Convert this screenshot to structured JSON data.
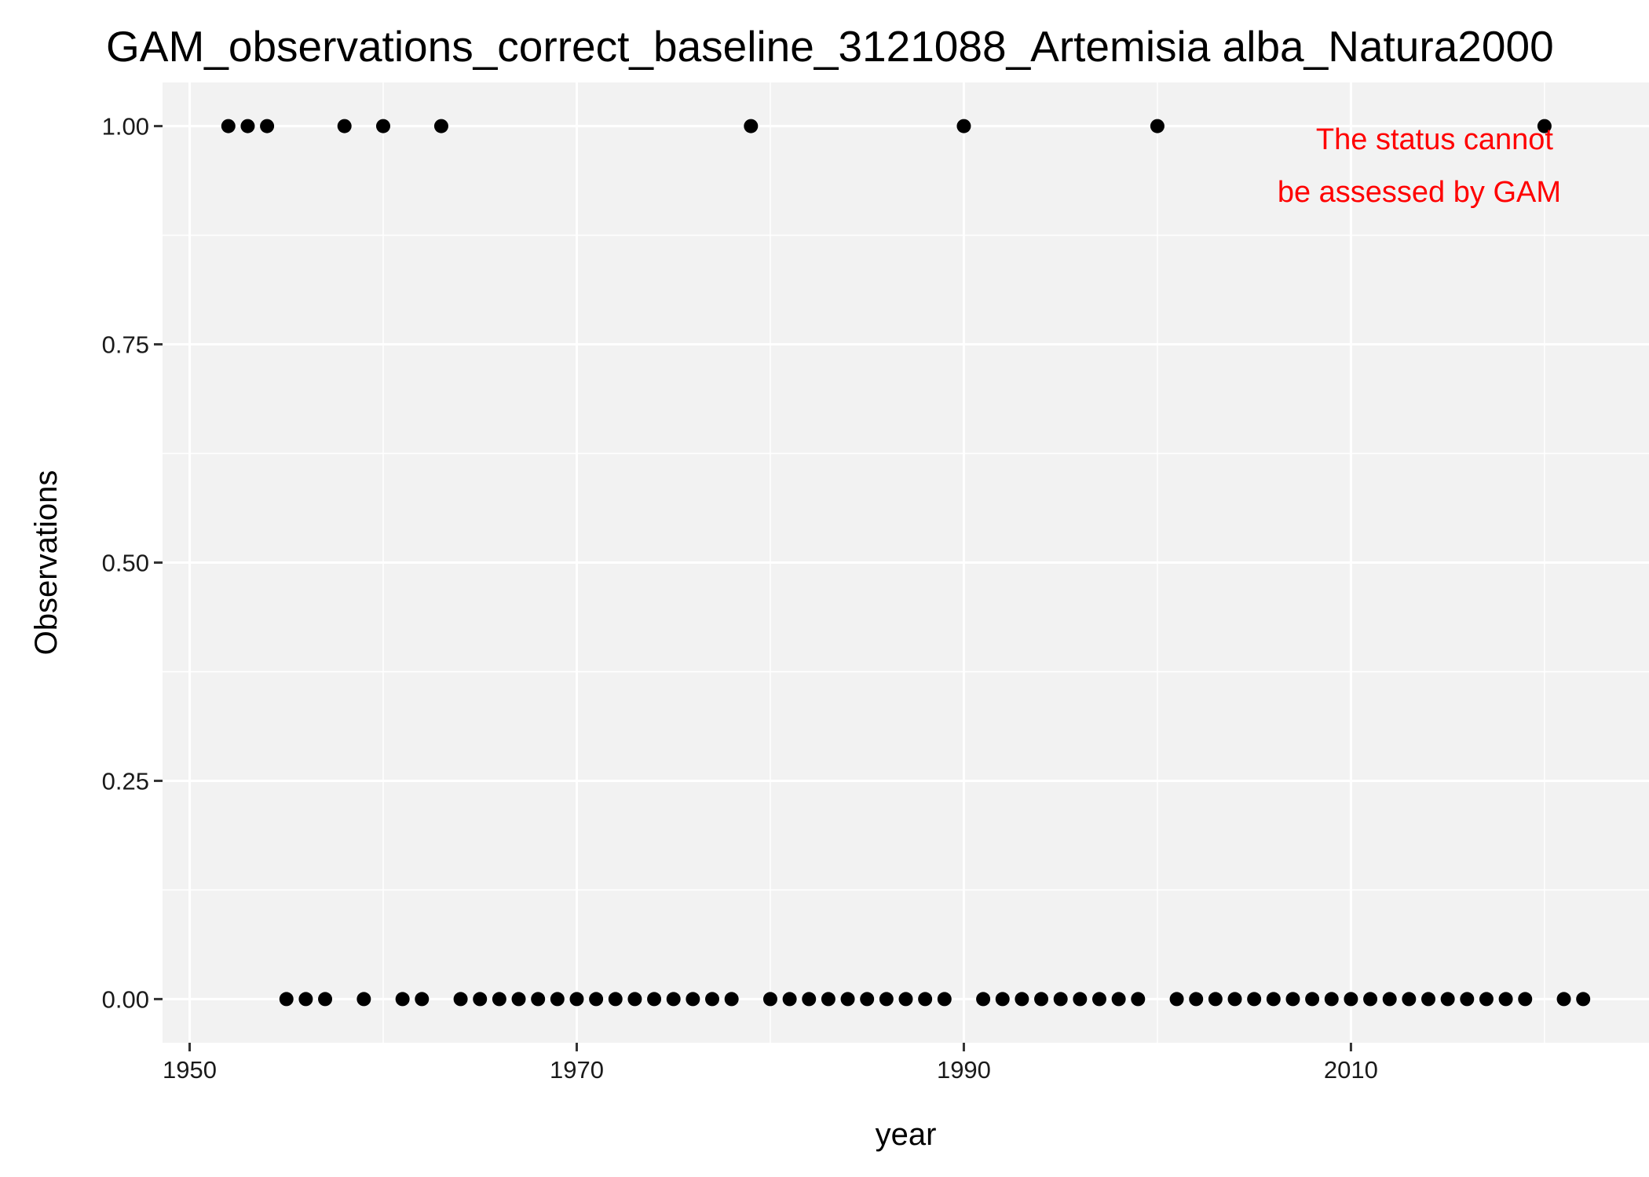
{
  "chart_data": {
    "type": "scatter",
    "title": "GAM_observations_correct_baseline_3121088_Artemisia alba_Natura2000",
    "xlabel": "year",
    "ylabel": "Observations",
    "xlim": [
      1948.6,
      2025.4
    ],
    "ylim": [
      -0.05,
      1.05
    ],
    "x_ticks": [
      1950,
      1970,
      1990,
      2010
    ],
    "x_tick_labels": [
      "1950",
      "1970",
      "1990",
      "2010"
    ],
    "y_ticks": [
      0,
      0.25,
      0.5,
      0.75,
      1
    ],
    "y_tick_labels": [
      "0.00",
      "0.25",
      "0.50",
      "0.75",
      "1.00"
    ],
    "grid": true,
    "legend": "none",
    "colors": {
      "panel": "#f2f2f2",
      "grid": "#ffffff",
      "point": "#000000",
      "annotation": "#ff0000"
    },
    "annotation": [
      "The status cannot",
      "be assessed by GAM"
    ],
    "points": [
      [
        1952,
        1
      ],
      [
        1953,
        1
      ],
      [
        1954,
        1
      ],
      [
        1955,
        0
      ],
      [
        1956,
        0
      ],
      [
        1957,
        0
      ],
      [
        1958,
        1
      ],
      [
        1959,
        0
      ],
      [
        1960,
        1
      ],
      [
        1961,
        0
      ],
      [
        1962,
        0
      ],
      [
        1963,
        1
      ],
      [
        1964,
        0
      ],
      [
        1965,
        0
      ],
      [
        1966,
        0
      ],
      [
        1967,
        0
      ],
      [
        1968,
        0
      ],
      [
        1969,
        0
      ],
      [
        1970,
        0
      ],
      [
        1971,
        0
      ],
      [
        1972,
        0
      ],
      [
        1973,
        0
      ],
      [
        1974,
        0
      ],
      [
        1975,
        0
      ],
      [
        1976,
        0
      ],
      [
        1977,
        0
      ],
      [
        1978,
        0
      ],
      [
        1979,
        1
      ],
      [
        1980,
        0
      ],
      [
        1981,
        0
      ],
      [
        1982,
        0
      ],
      [
        1983,
        0
      ],
      [
        1984,
        0
      ],
      [
        1985,
        0
      ],
      [
        1986,
        0
      ],
      [
        1987,
        0
      ],
      [
        1988,
        0
      ],
      [
        1989,
        0
      ],
      [
        1990,
        1
      ],
      [
        1991,
        0
      ],
      [
        1992,
        0
      ],
      [
        1993,
        0
      ],
      [
        1994,
        0
      ],
      [
        1995,
        0
      ],
      [
        1996,
        0
      ],
      [
        1997,
        0
      ],
      [
        1998,
        0
      ],
      [
        1999,
        0
      ],
      [
        2000,
        1
      ],
      [
        2001,
        0
      ],
      [
        2002,
        0
      ],
      [
        2003,
        0
      ],
      [
        2004,
        0
      ],
      [
        2005,
        0
      ],
      [
        2006,
        0
      ],
      [
        2007,
        0
      ],
      [
        2008,
        0
      ],
      [
        2009,
        0
      ],
      [
        2010,
        0
      ],
      [
        2011,
        0
      ],
      [
        2012,
        0
      ],
      [
        2013,
        0
      ],
      [
        2014,
        0
      ],
      [
        2015,
        0
      ],
      [
        2016,
        0
      ],
      [
        2017,
        0
      ],
      [
        2018,
        0
      ],
      [
        2019,
        0
      ],
      [
        2020,
        1
      ],
      [
        2021,
        0
      ],
      [
        2022,
        0
      ]
    ]
  }
}
